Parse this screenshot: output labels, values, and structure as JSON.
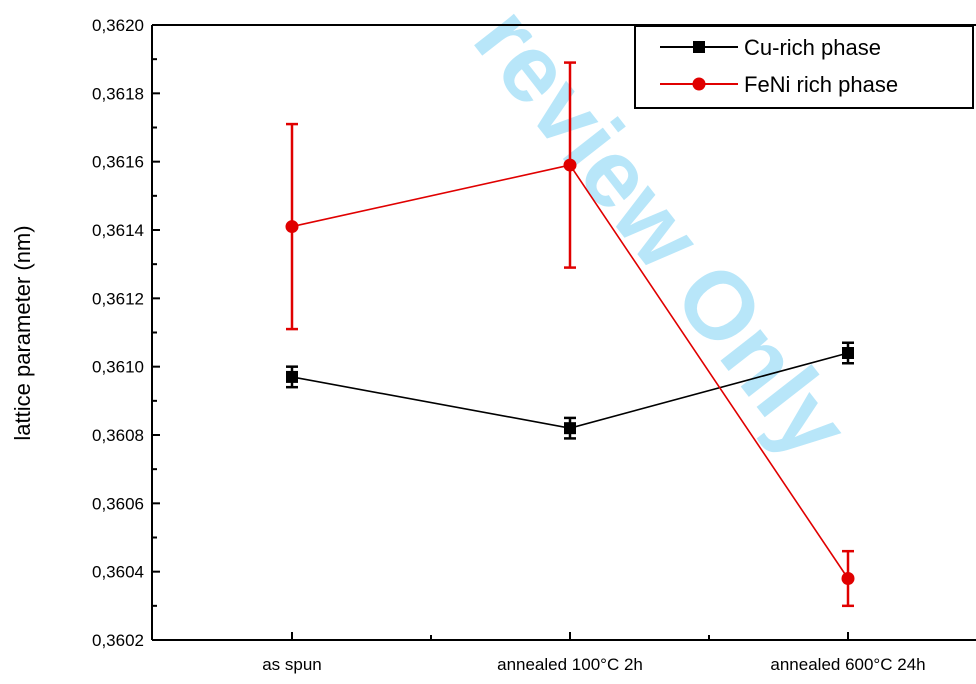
{
  "chart_data": {
    "type": "line",
    "ylabel": "lattice parameter (nm)",
    "xlabel": "",
    "categories": [
      "as spun",
      "annealed 100°C 2h",
      "annealed 600°C 24h"
    ],
    "ylim": [
      0.3602,
      0.362
    ],
    "yticks": [
      "0,3602",
      "0,3604",
      "0,3606",
      "0,3608",
      "0,3610",
      "0,3612",
      "0,3614",
      "0,3616",
      "0,3618",
      "0,3620"
    ],
    "ytick_values": [
      0.3602,
      0.3604,
      0.3606,
      0.3608,
      0.361,
      0.3612,
      0.3614,
      0.3616,
      0.3618,
      0.362
    ],
    "legend_position": "top-right",
    "series": [
      {
        "name": "Cu-rich phase",
        "color": "#000000",
        "marker": "square",
        "values": [
          0.36097,
          0.36082,
          0.36104
        ],
        "errors": [
          3e-05,
          3e-05,
          3e-05
        ]
      },
      {
        "name": "FeNi rich phase",
        "color": "#e00000",
        "marker": "circle",
        "values": [
          0.36141,
          0.36159,
          0.36038
        ],
        "errors": [
          0.0003,
          0.0003,
          8e-05
        ]
      }
    ]
  },
  "watermark": {
    "text": "review Only",
    "color": "#7fd3f5"
  }
}
